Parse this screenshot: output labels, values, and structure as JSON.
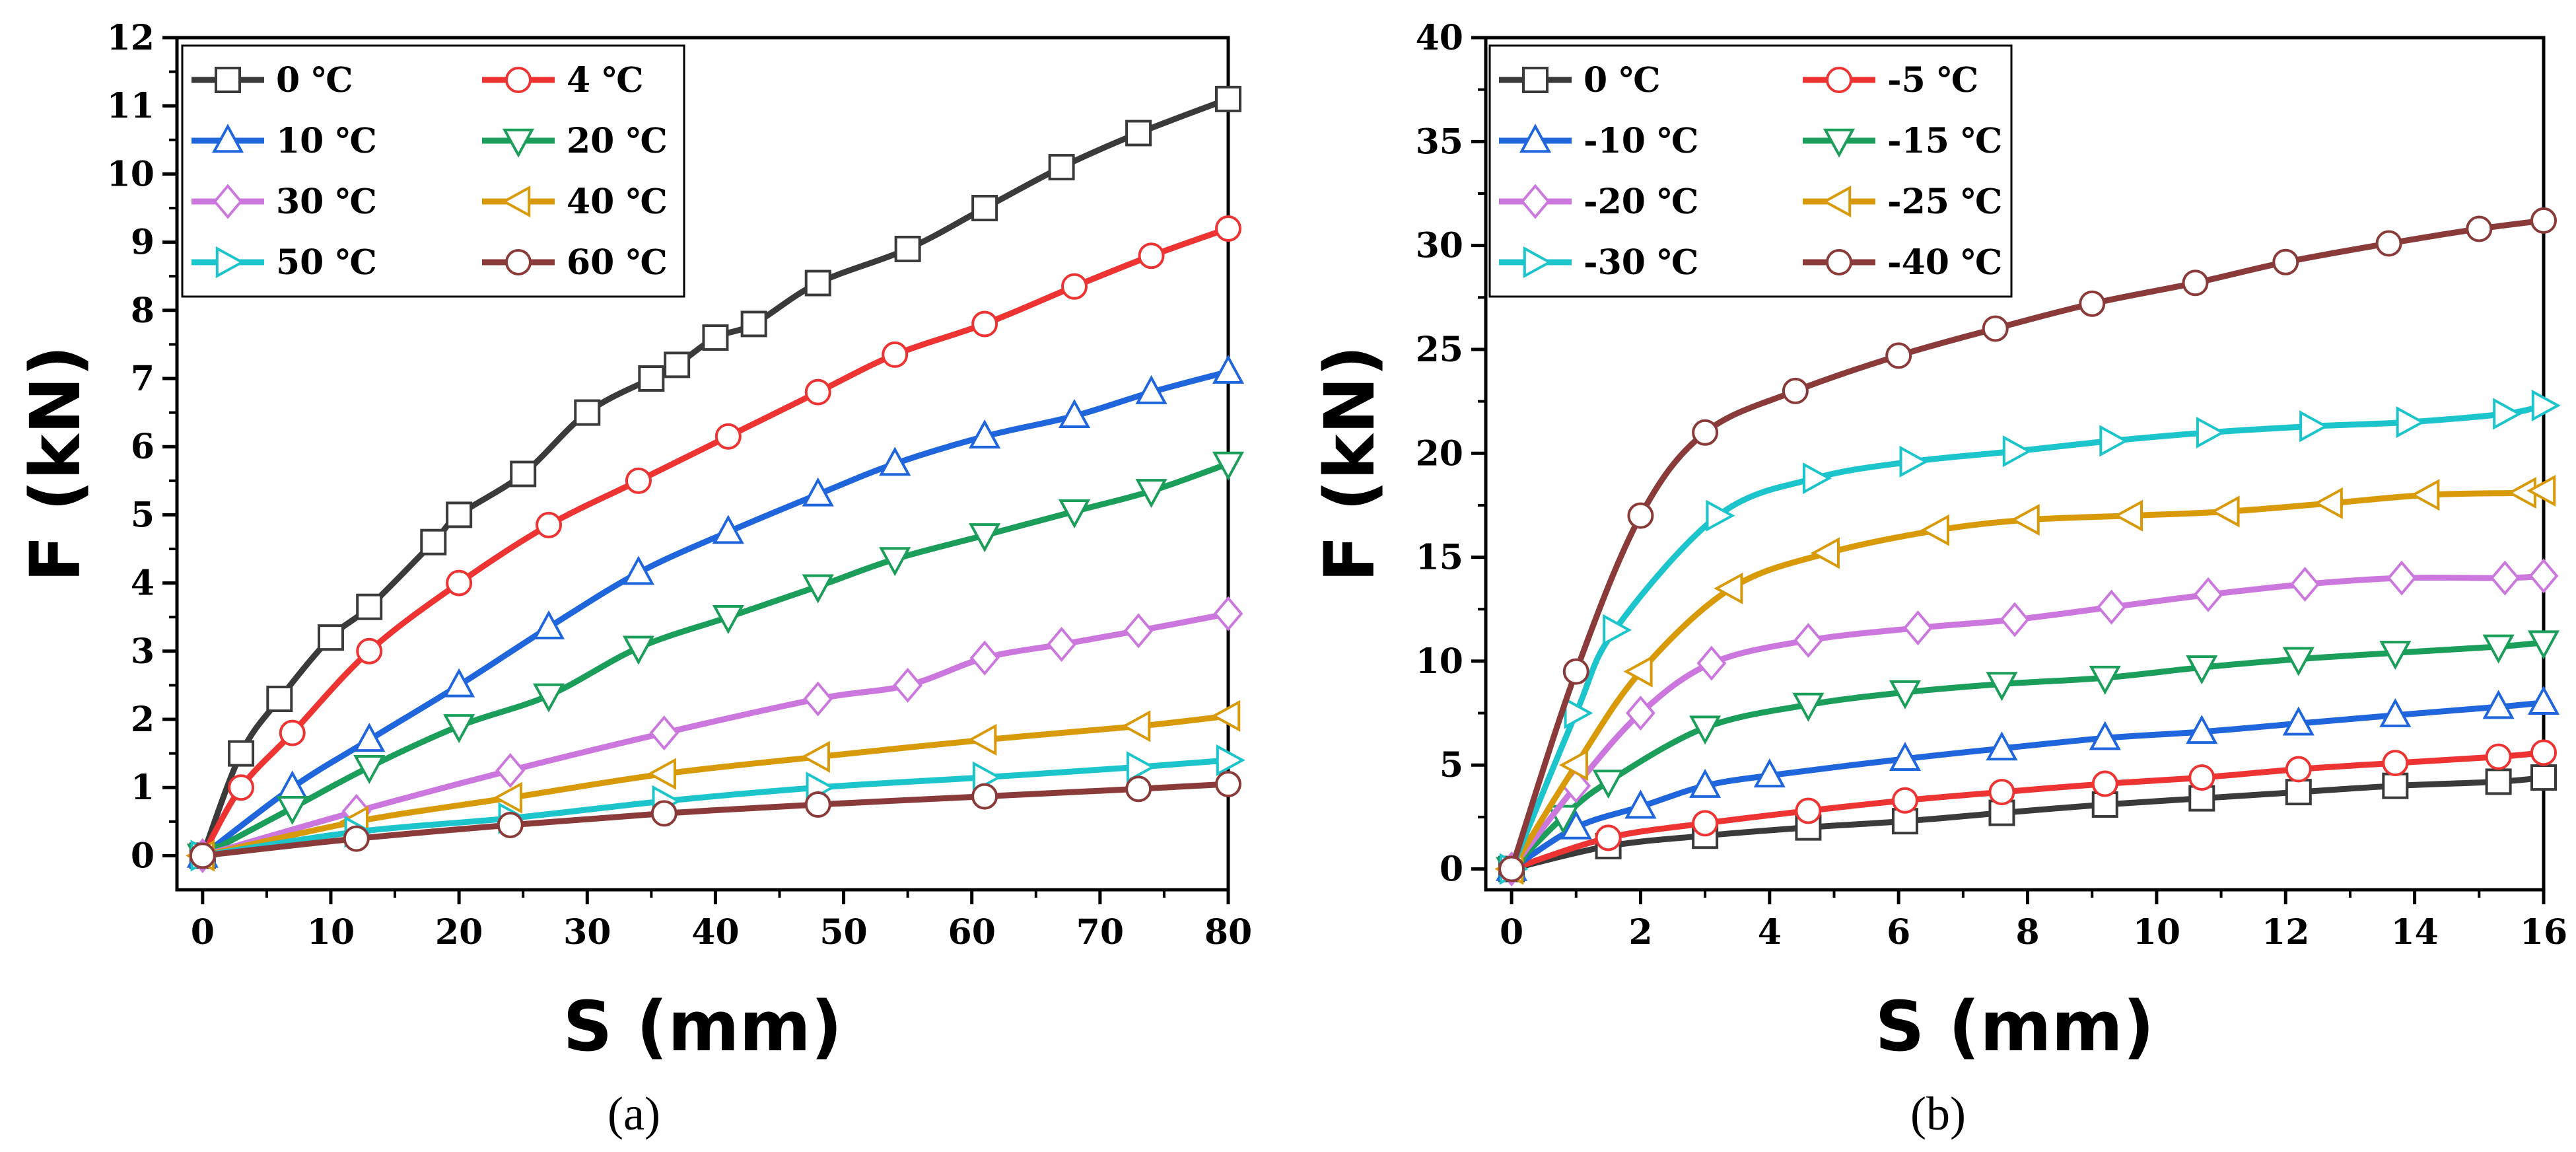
{
  "chart_data": [
    {
      "type": "line",
      "panel_label": "(a)",
      "xlabel": "S (mm)",
      "ylabel": "F (kN)",
      "xlim": [
        -2,
        80
      ],
      "ylim": [
        -0.5,
        12
      ],
      "xticks": [
        0,
        10,
        20,
        30,
        40,
        50,
        60,
        70,
        80
      ],
      "yticks": [
        0,
        1,
        2,
        3,
        4,
        5,
        6,
        7,
        8,
        9,
        10,
        11,
        12
      ],
      "grid": false,
      "legend_position": "top-left",
      "legend_columns": 2,
      "series": [
        {
          "name": "0 ℃",
          "color": "#3a3a3a",
          "marker": "square",
          "x": [
            0,
            3,
            6,
            10,
            13,
            18,
            20,
            25,
            30,
            35,
            37,
            40,
            43,
            48,
            55,
            61,
            67,
            73,
            80
          ],
          "y": [
            0,
            1.5,
            2.3,
            3.2,
            3.65,
            4.6,
            5.0,
            5.6,
            6.5,
            7.0,
            7.2,
            7.6,
            7.8,
            8.4,
            8.9,
            9.5,
            10.1,
            10.6,
            11.1
          ]
        },
        {
          "name": "4 ℃",
          "color": "#ee3333",
          "marker": "circle",
          "x": [
            0,
            3,
            7,
            13,
            20,
            27,
            34,
            41,
            48,
            54,
            61,
            68,
            74,
            80
          ],
          "y": [
            0,
            1.0,
            1.8,
            3.0,
            4.0,
            4.85,
            5.5,
            6.15,
            6.8,
            7.35,
            7.8,
            8.35,
            8.8,
            9.2
          ]
        },
        {
          "name": "10 ℃",
          "color": "#1f66dd",
          "marker": "triangle-up",
          "x": [
            0,
            7,
            13,
            20,
            27,
            34,
            41,
            48,
            54,
            61,
            68,
            74,
            80
          ],
          "y": [
            0,
            1.0,
            1.7,
            2.5,
            3.35,
            4.15,
            4.75,
            5.3,
            5.75,
            6.15,
            6.45,
            6.8,
            7.1
          ]
        },
        {
          "name": "20 ℃",
          "color": "#1a9e5a",
          "marker": "triangle-down",
          "x": [
            0,
            7,
            13,
            20,
            27,
            34,
            41,
            48,
            54,
            61,
            68,
            74,
            80
          ],
          "y": [
            0,
            0.7,
            1.3,
            1.9,
            2.35,
            3.05,
            3.5,
            3.95,
            4.35,
            4.7,
            5.05,
            5.35,
            5.75
          ]
        },
        {
          "name": "30 ℃",
          "color": "#cc77dd",
          "marker": "diamond",
          "x": [
            0,
            12,
            24,
            36,
            48,
            55,
            61,
            67,
            73,
            80
          ],
          "y": [
            0,
            0.65,
            1.25,
            1.8,
            2.3,
            2.5,
            2.9,
            3.1,
            3.3,
            3.55
          ]
        },
        {
          "name": "40 ℃",
          "color": "#d99a0a",
          "marker": "triangle-left",
          "x": [
            0,
            12,
            24,
            36,
            48,
            61,
            73,
            80
          ],
          "y": [
            0,
            0.5,
            0.85,
            1.2,
            1.45,
            1.7,
            1.9,
            2.05
          ]
        },
        {
          "name": "50 ℃",
          "color": "#1cc4cc",
          "marker": "triangle-right",
          "x": [
            0,
            12,
            24,
            36,
            48,
            61,
            73,
            80
          ],
          "y": [
            0,
            0.35,
            0.55,
            0.8,
            1.0,
            1.15,
            1.3,
            1.4
          ]
        },
        {
          "name": "60 ℃",
          "color": "#8b3a3a",
          "marker": "circle",
          "x": [
            0,
            12,
            24,
            36,
            48,
            61,
            73,
            80
          ],
          "y": [
            0,
            0.25,
            0.45,
            0.62,
            0.75,
            0.87,
            0.98,
            1.05
          ]
        }
      ]
    },
    {
      "type": "line",
      "panel_label": "(b)",
      "xlabel": "S (mm)",
      "ylabel": "F (kN)",
      "xlim": [
        -0.4,
        16
      ],
      "ylim": [
        -1,
        40
      ],
      "xticks": [
        0,
        2,
        4,
        6,
        8,
        10,
        12,
        14,
        16
      ],
      "yticks": [
        0,
        5,
        10,
        15,
        20,
        25,
        30,
        35,
        40
      ],
      "grid": false,
      "legend_position": "top-left",
      "legend_columns": 2,
      "series": [
        {
          "name": "0 ℃",
          "color": "#3a3a3a",
          "marker": "square",
          "x": [
            0,
            1.5,
            3,
            4.6,
            6.1,
            7.6,
            9.2,
            10.7,
            12.2,
            13.7,
            15.3,
            16
          ],
          "y": [
            0,
            1.1,
            1.6,
            2.0,
            2.3,
            2.7,
            3.1,
            3.4,
            3.7,
            4.0,
            4.2,
            4.4
          ]
        },
        {
          "name": "-5 ℃",
          "color": "#ee3333",
          "marker": "circle",
          "x": [
            0,
            1.5,
            3,
            4.6,
            6.1,
            7.6,
            9.2,
            10.7,
            12.2,
            13.7,
            15.3,
            16
          ],
          "y": [
            0,
            1.5,
            2.2,
            2.8,
            3.3,
            3.7,
            4.1,
            4.4,
            4.8,
            5.1,
            5.4,
            5.6
          ]
        },
        {
          "name": "-10 ℃",
          "color": "#1f66dd",
          "marker": "triangle-up",
          "x": [
            0,
            1,
            2,
            3,
            4,
            6.1,
            7.6,
            9.2,
            10.7,
            12.2,
            13.7,
            15.3,
            16
          ],
          "y": [
            0,
            2.0,
            3.0,
            4.0,
            4.5,
            5.3,
            5.8,
            6.3,
            6.6,
            7.0,
            7.4,
            7.8,
            8.0
          ]
        },
        {
          "name": "-15 ℃",
          "color": "#1a9e5a",
          "marker": "triangle-down",
          "x": [
            0,
            0.8,
            1.5,
            3,
            4.6,
            6.1,
            7.6,
            9.2,
            10.7,
            12.2,
            13.7,
            15.3,
            16
          ],
          "y": [
            0,
            2.5,
            4.2,
            6.8,
            7.9,
            8.5,
            8.9,
            9.2,
            9.7,
            10.1,
            10.4,
            10.7,
            10.9
          ]
        },
        {
          "name": "-20 ℃",
          "color": "#cc77dd",
          "marker": "diamond",
          "x": [
            0,
            1,
            2,
            3.1,
            4.6,
            6.3,
            7.8,
            9.3,
            10.8,
            12.3,
            13.8,
            15.4,
            16
          ],
          "y": [
            0,
            4.0,
            7.5,
            9.9,
            11.0,
            11.6,
            12.0,
            12.6,
            13.2,
            13.7,
            14.0,
            14.0,
            14.1
          ]
        },
        {
          "name": "-25 ℃",
          "color": "#d99a0a",
          "marker": "triangle-left",
          "x": [
            0,
            1,
            2,
            3.4,
            4.9,
            6.6,
            8.0,
            9.6,
            11.1,
            12.7,
            14.2,
            15.7,
            16
          ],
          "y": [
            0,
            5.0,
            9.5,
            13.5,
            15.2,
            16.3,
            16.8,
            17.0,
            17.2,
            17.6,
            18.0,
            18.1,
            18.2
          ]
        },
        {
          "name": "-30 ℃",
          "color": "#1cc4cc",
          "marker": "triangle-right",
          "x": [
            0,
            1,
            1.6,
            3.2,
            4.7,
            6.2,
            7.8,
            9.3,
            10.8,
            12.4,
            13.9,
            15.4,
            16
          ],
          "y": [
            0,
            7.5,
            11.5,
            17.0,
            18.8,
            19.6,
            20.1,
            20.6,
            21.0,
            21.3,
            21.5,
            21.9,
            22.3
          ]
        },
        {
          "name": "-40 ℃",
          "color": "#8b3a3a",
          "marker": "circle",
          "x": [
            0,
            1,
            2,
            3,
            4.4,
            6,
            7.5,
            9,
            10.6,
            12,
            13.6,
            15,
            16
          ],
          "y": [
            0,
            9.5,
            17.0,
            21.0,
            23.0,
            24.7,
            26.0,
            27.2,
            28.2,
            29.2,
            30.1,
            30.8,
            31.2
          ]
        }
      ]
    }
  ]
}
